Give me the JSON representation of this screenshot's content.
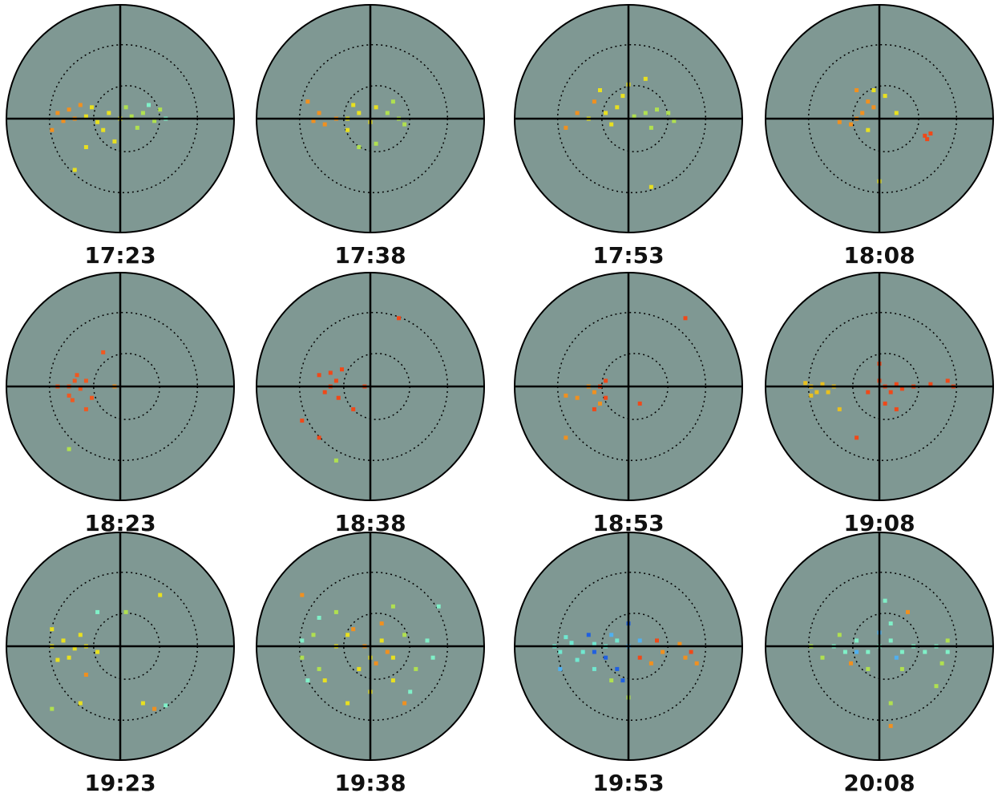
{
  "chart_data": [
    {
      "type": "scatter",
      "title": "17:23",
      "xlim": [
        -1,
        1
      ],
      "ylim": [
        -1,
        1
      ],
      "series": [
        {
          "color": "#f09020",
          "x": [
            -0.55,
            -0.5,
            -0.45,
            -0.4,
            -0.6,
            -0.35
          ],
          "values": [
            0.05,
            -0.02,
            0.08,
            0.0,
            -0.1,
            0.12
          ]
        },
        {
          "color": "#e8e020",
          "x": [
            -0.3,
            -0.2,
            -0.1,
            -0.25,
            -0.15,
            0,
            -0.05,
            -0.3,
            -0.4
          ],
          "values": [
            0.02,
            -0.03,
            0.05,
            0.1,
            -0.1,
            0.0,
            -0.2,
            -0.25,
            -0.45
          ]
        },
        {
          "color": "#b0e050",
          "x": [
            0.1,
            0.2,
            0.3,
            0.15,
            0.35,
            0.05
          ],
          "values": [
            0.02,
            0.05,
            -0.02,
            -0.08,
            0.08,
            0.1
          ]
        },
        {
          "color": "#80f0c8",
          "x": [
            0.4,
            0.25
          ],
          "values": [
            0.0,
            0.12
          ]
        }
      ]
    },
    {
      "type": "scatter",
      "title": "17:38",
      "xlim": [
        -1,
        1
      ],
      "ylim": [
        -1,
        1
      ],
      "series": [
        {
          "color": "#f09020",
          "x": [
            -0.45,
            -0.4,
            -0.55,
            -0.3,
            -0.5
          ],
          "values": [
            0.05,
            -0.05,
            0.15,
            0.0,
            -0.02
          ]
        },
        {
          "color": "#e8e020",
          "x": [
            -0.2,
            -0.1,
            0,
            -0.15,
            0.05,
            -0.2
          ],
          "values": [
            0.0,
            0.05,
            -0.03,
            0.12,
            0.1,
            -0.1
          ]
        },
        {
          "color": "#b0e050",
          "x": [
            0.15,
            0.25,
            0.3,
            0.2,
            -0.1,
            0.05
          ],
          "values": [
            0.05,
            0.0,
            -0.05,
            0.15,
            -0.25,
            -0.22
          ]
        }
      ]
    },
    {
      "type": "scatter",
      "title": "17:53",
      "xlim": [
        -1,
        1
      ],
      "ylim": [
        -1,
        1
      ],
      "series": [
        {
          "color": "#f09020",
          "x": [
            -0.45,
            -0.55,
            -0.3
          ],
          "values": [
            0.05,
            -0.08,
            0.15
          ]
        },
        {
          "color": "#e8e020",
          "x": [
            -0.35,
            -0.2,
            -0.1,
            -0.15,
            -0.05,
            -0.25,
            0.0,
            0.15,
            0.2
          ],
          "values": [
            0.0,
            0.05,
            0.1,
            -0.05,
            0.2,
            0.25,
            0.3,
            0.35,
            -0.6
          ]
        },
        {
          "color": "#b0e050",
          "x": [
            0.05,
            0.15,
            0.25,
            0.35,
            0.2,
            0.4
          ],
          "values": [
            0.02,
            0.05,
            0.08,
            0.05,
            -0.08,
            -0.02
          ]
        }
      ]
    },
    {
      "type": "scatter",
      "title": "18:08",
      "xlim": [
        -1,
        1
      ],
      "ylim": [
        -1,
        1
      ],
      "series": [
        {
          "color": "#f09020",
          "x": [
            -0.2,
            -0.15,
            -0.25,
            -0.1,
            -0.2,
            -0.05,
            -0.35
          ],
          "values": [
            0.0,
            0.05,
            -0.05,
            0.15,
            0.25,
            0.1,
            -0.03
          ]
        },
        {
          "color": "#f04818",
          "x": [
            0.4,
            0.45,
            0.42
          ],
          "values": [
            -0.15,
            -0.13,
            -0.18
          ]
        },
        {
          "color": "#e8e020",
          "x": [
            -0.05,
            0.05,
            0,
            0.15,
            -0.1
          ],
          "values": [
            0.25,
            0.2,
            -0.55,
            0.05,
            -0.1
          ]
        }
      ]
    },
    {
      "type": "scatter",
      "title": "18:23",
      "xlim": [
        -1,
        1
      ],
      "ylim": [
        -1,
        1
      ],
      "series": [
        {
          "color": "#f05820",
          "x": [
            -0.45,
            -0.4,
            -0.35,
            -0.45,
            -0.38,
            -0.3,
            -0.42,
            -0.25,
            -0.3,
            -0.15,
            -0.55
          ],
          "values": [
            0.0,
            0.05,
            -0.02,
            -0.08,
            0.1,
            0.05,
            -0.12,
            -0.1,
            -0.2,
            0.3,
            0.0
          ]
        },
        {
          "color": "#f09020",
          "x": [
            -0.05
          ],
          "values": [
            0.0
          ]
        },
        {
          "color": "#b0e050",
          "x": [
            -0.45
          ],
          "values": [
            -0.55
          ]
        }
      ]
    },
    {
      "type": "scatter",
      "title": "18:38",
      "xlim": [
        -1,
        1
      ],
      "ylim": [
        -1,
        1
      ],
      "series": [
        {
          "color": "#f04818",
          "x": [
            -0.35,
            -0.3,
            -0.4,
            -0.28,
            -0.35,
            -0.25,
            -0.45,
            -0.6,
            -0.45,
            -0.15,
            -0.05,
            0.25
          ],
          "values": [
            0.0,
            0.05,
            -0.05,
            -0.1,
            0.12,
            0.15,
            0.1,
            -0.3,
            -0.45,
            -0.2,
            0.0,
            0.6
          ]
        },
        {
          "color": "#b0e050",
          "x": [
            -0.3
          ],
          "values": [
            -0.65
          ]
        }
      ]
    },
    {
      "type": "scatter",
      "title": "18:53",
      "xlim": [
        -1,
        1
      ],
      "ylim": [
        -1,
        1
      ],
      "series": [
        {
          "color": "#f09020",
          "x": [
            -0.35,
            -0.3,
            -0.45,
            -0.55,
            -0.25,
            -0.55
          ],
          "values": [
            0.0,
            -0.05,
            -0.1,
            -0.08,
            -0.15,
            -0.45
          ]
        },
        {
          "color": "#f04818",
          "x": [
            -0.25,
            -0.2,
            -0.3,
            -0.2,
            0.5,
            0.1
          ],
          "values": [
            0.0,
            0.05,
            -0.2,
            -0.1,
            0.6,
            -0.15
          ]
        }
      ]
    },
    {
      "type": "scatter",
      "title": "19:08",
      "xlim": [
        -1,
        1
      ],
      "ylim": [
        -1,
        1
      ],
      "series": [
        {
          "color": "#e8c020",
          "x": [
            -0.6,
            -0.55,
            -0.5,
            -0.45,
            -0.65,
            -0.4,
            -0.35,
            -0.6
          ],
          "values": [
            0.0,
            -0.05,
            0.02,
            -0.05,
            0.03,
            0.0,
            -0.2,
            -0.08
          ]
        },
        {
          "color": "#f04818",
          "x": [
            0,
            0.05,
            0.1,
            0.15,
            0.2,
            0.3,
            0.45,
            0.6,
            0.65,
            -0.1,
            0.05,
            0.15,
            -0.2,
            0
          ],
          "values": [
            0.05,
            0.0,
            -0.05,
            0.02,
            -0.02,
            0.0,
            0.02,
            0.05,
            0.0,
            -0.05,
            -0.15,
            -0.2,
            -0.45,
            0.2
          ]
        }
      ]
    },
    {
      "type": "scatter",
      "title": "19:23",
      "xlim": [
        -1,
        1
      ],
      "ylim": [
        -1,
        1
      ],
      "series": [
        {
          "color": "#e8e020",
          "x": [
            -0.6,
            -0.5,
            -0.4,
            -0.3,
            -0.45,
            -0.35,
            -0.2,
            -0.55,
            -0.6,
            0.35,
            0.2,
            -0.35
          ],
          "values": [
            0.0,
            0.05,
            -0.02,
            0.0,
            -0.1,
            0.1,
            -0.05,
            -0.12,
            0.15,
            0.45,
            -0.5,
            -0.5
          ]
        },
        {
          "color": "#f09020",
          "x": [
            -0.3,
            0.3
          ],
          "values": [
            -0.25,
            -0.55
          ]
        },
        {
          "color": "#80f0c8",
          "x": [
            0.4,
            -0.2
          ],
          "values": [
            -0.52,
            0.3
          ]
        },
        {
          "color": "#b0e050",
          "x": [
            -0.6,
            0.05
          ],
          "values": [
            -0.55,
            0.3
          ]
        }
      ]
    },
    {
      "type": "scatter",
      "title": "19:38",
      "xlim": [
        -1,
        1
      ],
      "ylim": [
        -1,
        1
      ],
      "series": [
        {
          "color": "#e8e020",
          "x": [
            -0.3,
            -0.2,
            0,
            0.1,
            -0.1,
            0.2,
            -0.4,
            0,
            0.2,
            -0.2
          ],
          "values": [
            0,
            0.1,
            -0.1,
            0.05,
            -0.2,
            -0.1,
            -0.3,
            -0.4,
            -0.3,
            -0.5
          ]
        },
        {
          "color": "#f09020",
          "x": [
            -0.05,
            0.05,
            0.1,
            -0.15,
            0.15,
            -0.6,
            0.3
          ],
          "values": [
            0.0,
            -0.15,
            0.2,
            0.15,
            -0.05,
            0.45,
            -0.5
          ]
        },
        {
          "color": "#b0e050",
          "x": [
            -0.5,
            -0.45,
            0.3,
            0.4,
            -0.3,
            0.2,
            -0.6
          ],
          "values": [
            0.1,
            -0.2,
            0.1,
            -0.2,
            0.3,
            0.35,
            -0.1
          ]
        },
        {
          "color": "#80f0c8",
          "x": [
            -0.6,
            -0.55,
            0.55,
            0.5,
            -0.45,
            0.35,
            0.6
          ],
          "values": [
            0.05,
            -0.3,
            -0.1,
            0.05,
            0.25,
            -0.4,
            0.35
          ]
        }
      ]
    },
    {
      "type": "scatter",
      "title": "19:53",
      "xlim": [
        -1,
        1
      ],
      "ylim": [
        -1,
        1
      ],
      "series": [
        {
          "color": "#70e8d0",
          "x": [
            -0.65,
            -0.6,
            -0.5,
            -0.4,
            -0.3,
            -0.2,
            -0.1,
            -0.55,
            -0.45,
            -0.3
          ],
          "values": [
            0,
            -0.05,
            0.03,
            -0.05,
            0.02,
            0.0,
            0.05,
            0.08,
            -0.12,
            -0.2
          ]
        },
        {
          "color": "#2060e0",
          "x": [
            -0.2,
            -0.1,
            0,
            -0.3,
            -0.05,
            -0.35
          ],
          "values": [
            -0.1,
            -0.2,
            0.2,
            -0.05,
            -0.3,
            0.1
          ]
        },
        {
          "color": "#50b0f0",
          "x": [
            0,
            -0.15,
            -0.6,
            0.1
          ],
          "values": [
            0.0,
            0.1,
            -0.2,
            0.05
          ]
        },
        {
          "color": "#f09020",
          "x": [
            0.3,
            0.5,
            0.6,
            0.45,
            0.2
          ],
          "values": [
            -0.05,
            -0.1,
            -0.15,
            0.02,
            -0.15
          ]
        },
        {
          "color": "#f04818",
          "x": [
            0.25,
            0.1,
            0.55
          ],
          "values": [
            0.05,
            -0.1,
            -0.05
          ]
        },
        {
          "color": "#b0e050",
          "x": [
            0.0,
            -0.15
          ],
          "values": [
            -0.45,
            -0.3
          ]
        }
      ]
    },
    {
      "type": "scatter",
      "title": "20:08",
      "xlim": [
        -1,
        1
      ],
      "ylim": [
        -1,
        1
      ],
      "series": [
        {
          "color": "#80f0c8",
          "x": [
            -0.4,
            -0.3,
            -0.2,
            -0.1,
            0,
            0.1,
            0.2,
            0.3,
            0.4,
            0.5,
            0.6,
            0.05,
            0.1
          ],
          "values": [
            0,
            -0.05,
            0.05,
            -0.05,
            0.0,
            0.05,
            -0.05,
            0.0,
            -0.05,
            0.0,
            -0.05,
            0.4,
            0.2
          ]
        },
        {
          "color": "#b0e050",
          "x": [
            -0.6,
            -0.5,
            -0.35,
            0.55,
            0.6,
            -0.1,
            0.2,
            0.5,
            0.1
          ],
          "values": [
            0.0,
            -0.1,
            0.1,
            -0.15,
            0.05,
            -0.2,
            -0.2,
            -0.35,
            -0.5
          ]
        },
        {
          "color": "#f09020",
          "x": [
            0.1,
            0.25,
            -0.25
          ],
          "values": [
            -0.7,
            0.3,
            -0.15
          ]
        },
        {
          "color": "#50b0f0",
          "x": [
            0,
            0.15,
            -0.2
          ],
          "values": [
            0.12,
            -0.1,
            -0.05
          ]
        }
      ]
    }
  ]
}
